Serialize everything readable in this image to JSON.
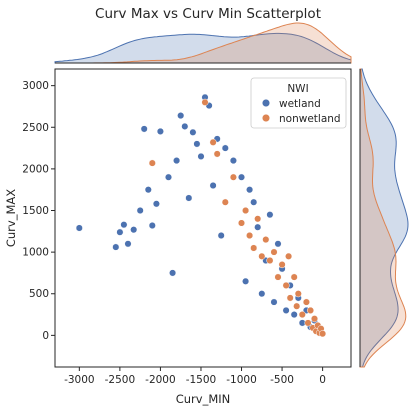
{
  "chart_data": {
    "type": "scatter",
    "title": "Curv Max vs Curv Min Scatterplot",
    "xlabel": "Curv_MIN",
    "ylabel": "Curv_MAX",
    "xlim": [
      -3300,
      350
    ],
    "ylim": [
      -380,
      3200
    ],
    "xticks": [
      -3000,
      -2500,
      -2000,
      -1500,
      -1000,
      -500,
      0
    ],
    "yticks": [
      0,
      500,
      1000,
      1500,
      2000,
      2500,
      3000
    ],
    "legend": {
      "title": "NWI",
      "placement": "top-right"
    },
    "series": [
      {
        "name": "wetland",
        "color": "#4c72b0",
        "points": [
          [
            -3000,
            1290
          ],
          [
            -2550,
            1060
          ],
          [
            -2500,
            1240
          ],
          [
            -2450,
            1330
          ],
          [
            -2400,
            1100
          ],
          [
            -2330,
            1270
          ],
          [
            -2250,
            1500
          ],
          [
            -2200,
            2480
          ],
          [
            -2150,
            1750
          ],
          [
            -2100,
            1320
          ],
          [
            -2050,
            1580
          ],
          [
            -2000,
            2450
          ],
          [
            -1900,
            1900
          ],
          [
            -1850,
            750
          ],
          [
            -1800,
            2100
          ],
          [
            -1750,
            2640
          ],
          [
            -1700,
            2510
          ],
          [
            -1650,
            1650
          ],
          [
            -1600,
            2440
          ],
          [
            -1550,
            2300
          ],
          [
            -1500,
            2150
          ],
          [
            -1450,
            2860
          ],
          [
            -1400,
            2760
          ],
          [
            -1350,
            1800
          ],
          [
            -1300,
            2360
          ],
          [
            -1250,
            1200
          ],
          [
            -1200,
            2250
          ],
          [
            -1100,
            2100
          ],
          [
            -1000,
            1900
          ],
          [
            -950,
            650
          ],
          [
            -900,
            1750
          ],
          [
            -850,
            1600
          ],
          [
            -800,
            1300
          ],
          [
            -750,
            500
          ],
          [
            -700,
            900
          ],
          [
            -650,
            1450
          ],
          [
            -600,
            400
          ],
          [
            -550,
            1100
          ],
          [
            -500,
            800
          ],
          [
            -450,
            300
          ],
          [
            -400,
            600
          ],
          [
            -350,
            250
          ],
          [
            -300,
            450
          ],
          [
            -250,
            150
          ],
          [
            -200,
            300
          ],
          [
            -150,
            100
          ],
          [
            -100,
            180
          ],
          [
            -50,
            60
          ],
          [
            -20,
            30
          ]
        ]
      },
      {
        "name": "nonwetland",
        "color": "#dd8452",
        "points": [
          [
            -2100,
            2070
          ],
          [
            -1450,
            2800
          ],
          [
            -1350,
            2320
          ],
          [
            -1300,
            2180
          ],
          [
            -1200,
            1600
          ],
          [
            -1100,
            1900
          ],
          [
            -1000,
            1350
          ],
          [
            -950,
            1500
          ],
          [
            -900,
            1200
          ],
          [
            -850,
            1050
          ],
          [
            -800,
            1400
          ],
          [
            -750,
            950
          ],
          [
            -700,
            1150
          ],
          [
            -650,
            900
          ],
          [
            -600,
            1000
          ],
          [
            -550,
            700
          ],
          [
            -500,
            850
          ],
          [
            -450,
            600
          ],
          [
            -420,
            950
          ],
          [
            -400,
            450
          ],
          [
            -350,
            700
          ],
          [
            -320,
            350
          ],
          [
            -300,
            500
          ],
          [
            -250,
            250
          ],
          [
            -200,
            400
          ],
          [
            -180,
            150
          ],
          [
            -150,
            300
          ],
          [
            -120,
            90
          ],
          [
            -100,
            200
          ],
          [
            -80,
            50
          ],
          [
            -60,
            120
          ],
          [
            -40,
            30
          ],
          [
            -20,
            80
          ],
          [
            0,
            20
          ]
        ]
      }
    ]
  }
}
